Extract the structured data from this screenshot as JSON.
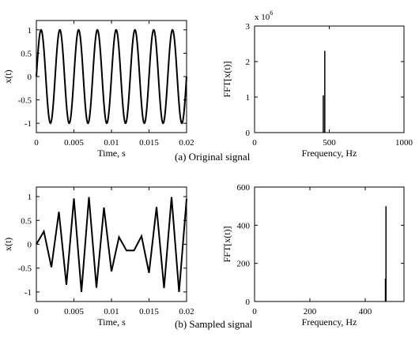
{
  "charts": [
    {
      "id": "orig_time",
      "type": "line",
      "xlabel": "Time, s",
      "ylabel": "x(t)",
      "xlim": [
        0,
        0.02
      ],
      "ylim": [
        -1.2,
        1.2
      ],
      "xticks": [
        "0",
        "0.005",
        "0.01",
        "0.015",
        "0.02"
      ],
      "yticks": [
        "-1",
        "-0.5",
        "0",
        "0.5",
        "1"
      ],
      "signal": {
        "frequency_hz": 400,
        "amplitude": 1
      }
    },
    {
      "id": "orig_fft",
      "type": "line",
      "xlabel": "Frequency, Hz",
      "ylabel": "FFT[x(t)]",
      "xlim": [
        0,
        1000
      ],
      "ylim": [
        0,
        3
      ],
      "y_multiplier": "x 10",
      "y_multiplier_exp": "6",
      "xticks": [
        "0",
        "500",
        "1000"
      ],
      "yticks": [
        "0",
        "1",
        "2",
        "3"
      ],
      "peaks": [
        {
          "x": 460,
          "y": 1.05
        },
        {
          "x": 470,
          "y": 2.3
        }
      ]
    },
    {
      "id": "sampled_time",
      "type": "line",
      "xlabel": "Time, s",
      "ylabel": "x(t)",
      "xlim": [
        0,
        0.02
      ],
      "ylim": [
        -1.2,
        1.2
      ],
      "xticks": [
        "0",
        "0.005",
        "0.01",
        "0.015",
        "0.02"
      ],
      "yticks": [
        "-1",
        "-0.5",
        "0",
        "0.5",
        "1"
      ],
      "points": [
        {
          "x": 0.0,
          "y": 0.0
        },
        {
          "x": 0.001,
          "y": 0.27
        },
        {
          "x": 0.002,
          "y": -0.48
        },
        {
          "x": 0.003,
          "y": 0.68
        },
        {
          "x": 0.004,
          "y": -0.85
        },
        {
          "x": 0.005,
          "y": 0.96
        },
        {
          "x": 0.006,
          "y": -1.0
        },
        {
          "x": 0.007,
          "y": 0.99
        },
        {
          "x": 0.008,
          "y": -0.91
        },
        {
          "x": 0.009,
          "y": 0.77
        },
        {
          "x": 0.01,
          "y": -0.57
        },
        {
          "x": 0.011,
          "y": 0.15
        },
        {
          "x": 0.012,
          "y": -0.13
        },
        {
          "x": 0.013,
          "y": -0.13
        },
        {
          "x": 0.014,
          "y": 0.17
        },
        {
          "x": 0.015,
          "y": -0.6
        },
        {
          "x": 0.016,
          "y": 0.78
        },
        {
          "x": 0.017,
          "y": -0.92
        },
        {
          "x": 0.018,
          "y": 0.99
        },
        {
          "x": 0.019,
          "y": -1.0
        },
        {
          "x": 0.02,
          "y": 0.95
        }
      ]
    },
    {
      "id": "sampled_fft",
      "type": "line",
      "xlabel": "Frequency, Hz",
      "ylabel": "FFT[x(t)]",
      "xlim": [
        0,
        540
      ],
      "ylim": [
        0,
        600
      ],
      "xticks": [
        "0",
        "200",
        "400"
      ],
      "yticks": [
        "0",
        "200",
        "400",
        "600"
      ],
      "peaks": [
        {
          "x": 473,
          "y": 120
        },
        {
          "x": 475,
          "y": 500
        }
      ]
    }
  ],
  "captions": {
    "a": "(a) Original signal",
    "b": "(b) Sampled signal"
  }
}
